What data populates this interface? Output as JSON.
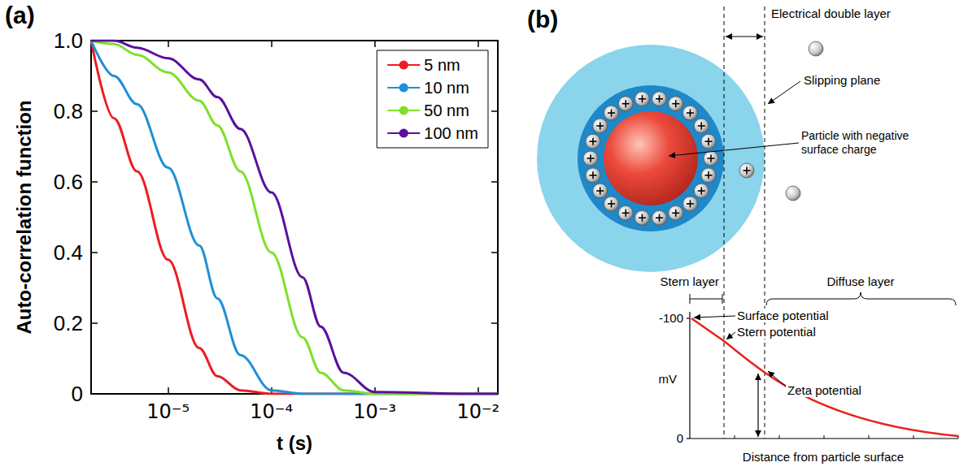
{
  "chart_data": {
    "type": "line",
    "panel_label": "(a)",
    "y_label": "Auto-correlation function",
    "x_label": "t (s)",
    "log": "x",
    "grid": false,
    "legend": "upper right",
    "x": [
      1.8e-06,
      3e-06,
      5e-06,
      1e-05,
      2e-05,
      3e-05,
      5e-05,
      0.0001,
      0.0002,
      0.0003,
      0.0005,
      0.001,
      0.01,
      0.0155
    ],
    "xlim": [
      1.8e-06,
      0.0155
    ],
    "xticks": [
      {
        "value": 1e-05,
        "label": "10⁻⁵"
      },
      {
        "value": 0.0001,
        "label": "10⁻⁴"
      },
      {
        "value": 0.001,
        "label": "10⁻³"
      },
      {
        "value": 0.01,
        "label": "10⁻²"
      }
    ],
    "ylim": [
      0,
      1
    ],
    "yticks": [
      0,
      0.2,
      0.4,
      0.6,
      0.8,
      {
        "value": 1,
        "label": "1.0"
      }
    ],
    "series": [
      {
        "name": "5 nm",
        "color": "#ed1c24",
        "values": [
          1.0,
          0.78,
          0.63,
          0.38,
          0.13,
          0.05,
          0.01,
          0,
          0,
          0,
          0,
          0,
          0,
          0
        ]
      },
      {
        "name": "10 nm",
        "color": "#1f8fd6",
        "values": [
          1.0,
          0.9,
          0.82,
          0.64,
          0.42,
          0.27,
          0.11,
          0.01,
          0,
          0,
          0,
          0,
          0,
          0
        ]
      },
      {
        "name": "50 nm",
        "color": "#7fe02a",
        "values": [
          1.0,
          0.99,
          0.96,
          0.91,
          0.83,
          0.76,
          0.63,
          0.4,
          0.16,
          0.06,
          0.01,
          0,
          0,
          0
        ]
      },
      {
        "name": "100 nm",
        "color": "#5b0f9e",
        "values": [
          1.0,
          1.0,
          0.98,
          0.95,
          0.89,
          0.84,
          0.75,
          0.57,
          0.33,
          0.19,
          0.06,
          0.005,
          0,
          0
        ]
      }
    ]
  },
  "diagram": {
    "panel_label": "(b)",
    "particle": {
      "double_layer_label": "Electrical double layer",
      "slipping_plane_label": "Slipping plane",
      "particle_label": "Particle with negative surface charge"
    },
    "potential_plot": {
      "regions": [
        "Stern layer",
        "Diffuse layer"
      ],
      "y_label": "mV",
      "y_tick_labels": [
        "-100",
        "0"
      ],
      "annotations": [
        "Surface potential",
        "Stern potential",
        "Zeta potential"
      ],
      "x_label": "Distance from particle surface"
    }
  }
}
